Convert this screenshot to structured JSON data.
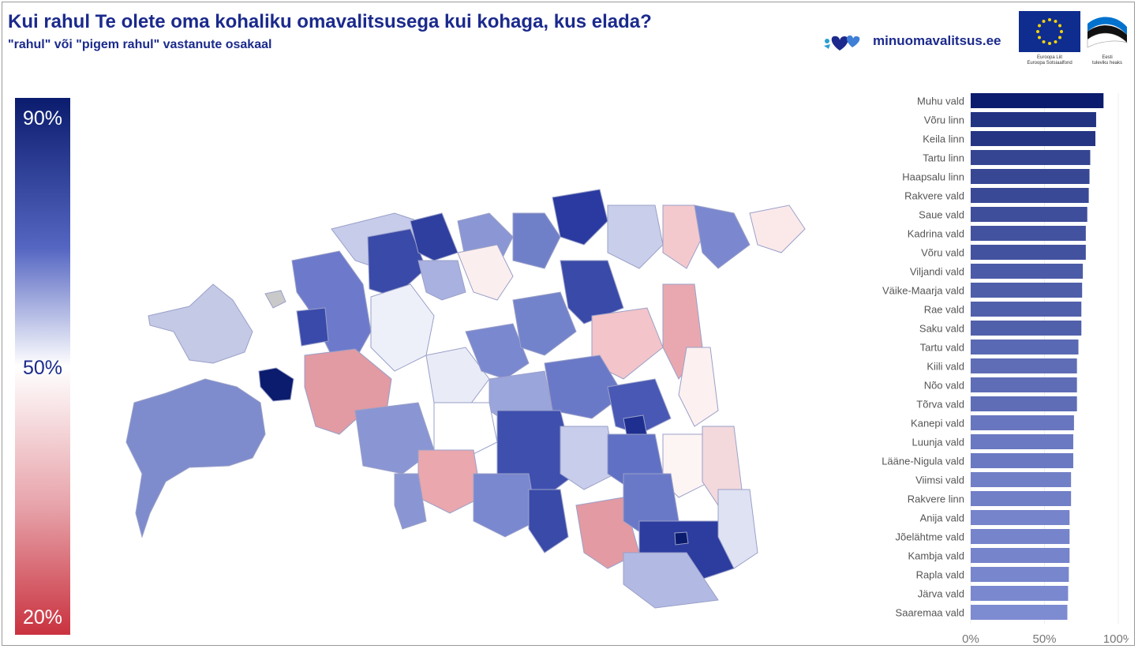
{
  "header": {
    "title": "Kui rahul Te olete oma kohaliku omavalitsusega kui kohaga, kus elada?",
    "subtitle": "\"rahul\" või \"pigem rahul\" vastanute osakaal"
  },
  "logos": {
    "site": "minuomavalitsus.ee",
    "eu_caption_1": "Euroopa Liit",
    "eu_caption_2": "Euroopa Sotsiaalfond",
    "ee_caption_1": "Eesti",
    "ee_caption_2": "tuleviku heaks"
  },
  "legend": {
    "max_label": "90%",
    "mid_label": "50%",
    "min_label": "20%",
    "colors": {
      "high": "#0b1c6e",
      "mid": "#ffffff",
      "low": "#c9323f"
    }
  },
  "map": {
    "description_icon": "estonia-map-icon"
  },
  "chart_data": {
    "type": "bar",
    "orientation": "horizontal",
    "categories": [
      "Muhu vald",
      "Võru linn",
      "Keila linn",
      "Tartu linn",
      "Haapsalu linn",
      "Rakvere vald",
      "Saue vald",
      "Kadrina vald",
      "Võru vald",
      "Viljandi vald",
      "Väike-Maarja vald",
      "Rae vald",
      "Saku vald",
      "Tartu vald",
      "Kiili vald",
      "Nõo vald",
      "Tõrva vald",
      "Kanepi vald",
      "Luunja vald",
      "Lääne-Nigula vald",
      "Viimsi vald",
      "Rakvere linn",
      "Anija vald",
      "Jõelähtme vald",
      "Kambja vald",
      "Rapla vald",
      "Järva vald",
      "Saaremaa vald"
    ],
    "values": [
      90,
      85,
      84.5,
      81,
      80.5,
      80,
      79,
      78,
      78,
      76,
      75.5,
      75,
      75,
      73,
      72,
      72,
      72,
      70,
      69.5,
      69.5,
      68,
      68,
      67,
      67,
      67,
      66.5,
      66,
      65.5
    ],
    "xlim": [
      0,
      100
    ],
    "xticks": [
      "0%",
      "50%",
      "100%"
    ],
    "title": "",
    "xlabel": "",
    "ylabel": ""
  }
}
